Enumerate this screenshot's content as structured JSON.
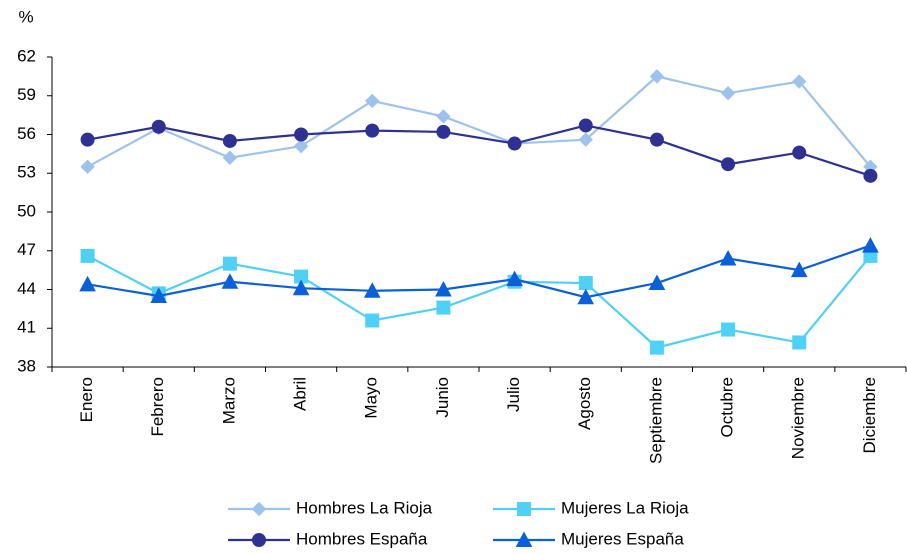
{
  "chart_data": {
    "type": "line",
    "y_label": "%",
    "categories": [
      "Enero",
      "Febrero",
      "Marzo",
      "Abril",
      "Mayo",
      "Junio",
      "Julio",
      "Agosto",
      "Septiembre",
      "Octubre",
      "Noviembre",
      "Diciembre"
    ],
    "series": [
      {
        "name": "Hombres La Rioja",
        "color": "#9dc3ec",
        "marker": "diamond",
        "values": [
          53.5,
          56.5,
          54.2,
          55.1,
          58.6,
          57.4,
          55.3,
          55.6,
          60.5,
          59.2,
          60.1,
          53.5
        ]
      },
      {
        "name": "Mujeres La Rioja",
        "color": "#4fd0f5",
        "marker": "square",
        "values": [
          46.6,
          43.7,
          46.0,
          45.0,
          41.6,
          42.6,
          44.6,
          44.5,
          39.5,
          40.9,
          39.9,
          46.6
        ]
      },
      {
        "name": "Hombres España",
        "color": "#2e3192",
        "marker": "circle",
        "values": [
          55.6,
          56.6,
          55.5,
          56.0,
          56.3,
          56.2,
          55.3,
          56.7,
          55.6,
          53.7,
          54.6,
          52.8
        ]
      },
      {
        "name": "Mujeres España",
        "color": "#0b5fd8",
        "marker": "triangle",
        "values": [
          44.4,
          43.5,
          44.6,
          44.1,
          43.9,
          44.0,
          44.8,
          43.4,
          44.5,
          46.4,
          45.5,
          47.4
        ]
      }
    ],
    "ylim": [
      38,
      62
    ],
    "yticks": [
      38,
      41,
      44,
      47,
      50,
      53,
      56,
      59,
      62
    ],
    "grid": false
  }
}
